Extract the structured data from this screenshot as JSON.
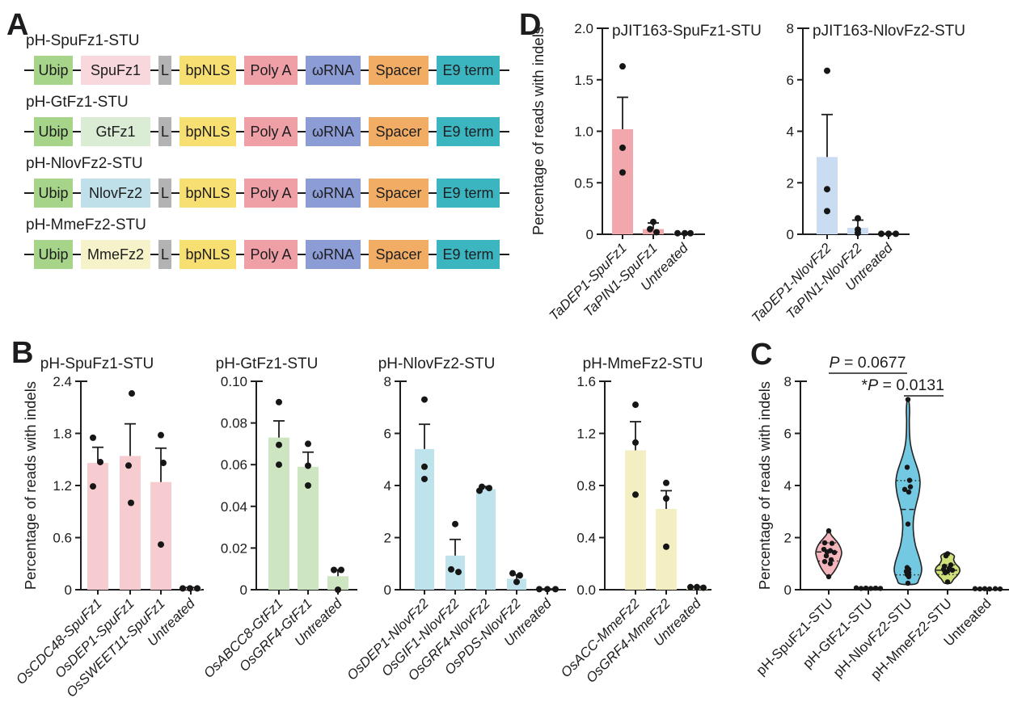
{
  "figure": {
    "panel_letters": {
      "a": "A",
      "b": "B",
      "c": "C",
      "d": "D"
    }
  },
  "panel_a": {
    "constructs": [
      {
        "title": "pH-SpuFz1-STU",
        "boxes": [
          {
            "label": "Ubip",
            "color": "#a6d488"
          },
          {
            "label": "SpuFz1",
            "color": "#f8d8dc"
          },
          {
            "label": "L",
            "color": "#b3b3b3"
          },
          {
            "label": "bpNLS",
            "color": "#f7df72"
          },
          {
            "label": "Poly A",
            "color": "#efa0a6"
          },
          {
            "label": "ωRNA",
            "color": "#8c9cd5"
          },
          {
            "label": "Spacer",
            "color": "#f2ad64"
          },
          {
            "label": "E9 term",
            "color": "#3bb5bf"
          }
        ]
      },
      {
        "title": "pH-GtFz1-STU",
        "boxes": [
          {
            "label": "Ubip",
            "color": "#a6d488"
          },
          {
            "label": "GtFz1",
            "color": "#daecd4"
          },
          {
            "label": "L",
            "color": "#b3b3b3"
          },
          {
            "label": "bpNLS",
            "color": "#f7df72"
          },
          {
            "label": "Poly A",
            "color": "#efa0a6"
          },
          {
            "label": "ωRNA",
            "color": "#8c9cd5"
          },
          {
            "label": "Spacer",
            "color": "#f2ad64"
          },
          {
            "label": "E9 term",
            "color": "#3bb5bf"
          }
        ]
      },
      {
        "title": "pH-NlovFz2-STU",
        "boxes": [
          {
            "label": "Ubip",
            "color": "#a6d488"
          },
          {
            "label": "NlovFz2",
            "color": "#bfe0e8"
          },
          {
            "label": "L",
            "color": "#b3b3b3"
          },
          {
            "label": "bpNLS",
            "color": "#f7df72"
          },
          {
            "label": "Poly A",
            "color": "#efa0a6"
          },
          {
            "label": "ωRNA",
            "color": "#8c9cd5"
          },
          {
            "label": "Spacer",
            "color": "#f2ad64"
          },
          {
            "label": "E9 term",
            "color": "#3bb5bf"
          }
        ]
      },
      {
        "title": "pH-MmeFz2-STU",
        "boxes": [
          {
            "label": "Ubip",
            "color": "#a6d488"
          },
          {
            "label": "MmeFz2",
            "color": "#f6f2ca"
          },
          {
            "label": "L",
            "color": "#b3b3b3"
          },
          {
            "label": "bpNLS",
            "color": "#f7df72"
          },
          {
            "label": "Poly A",
            "color": "#efa0a6"
          },
          {
            "label": "ωRNA",
            "color": "#8c9cd5"
          },
          {
            "label": "Spacer",
            "color": "#f2ad64"
          },
          {
            "label": "E9 term",
            "color": "#3bb5bf"
          }
        ]
      }
    ]
  },
  "chart_data": [
    {
      "id": "b1",
      "type": "bar",
      "title": "pH-SpuFz1-STU",
      "ylabel": "Percentage of reads with indels",
      "ylim": [
        0,
        2.4
      ],
      "ytick_values": [
        0,
        0.6,
        1.2,
        1.8,
        2.4
      ],
      "ytick_labels": [
        "0",
        "0.6",
        "1.2",
        "1.8",
        "2.4"
      ],
      "bar_color": "#f6ccd1",
      "x_italic": true,
      "categories": [
        "OsCDC48-SpuFz1",
        "OsDEP1-SpuFz1",
        "OsSWEET11-SpuFz1",
        "Untreated"
      ],
      "means": [
        1.46,
        1.54,
        1.24,
        0.015
      ],
      "sem_upper": [
        0.18,
        0.37,
        0.39,
        0.01
      ],
      "points": [
        [
          [
            1.75,
            -6
          ],
          [
            1.47,
            3
          ],
          [
            1.19,
            -6
          ]
        ],
        [
          [
            2.26,
            2
          ],
          [
            1.43,
            -2
          ],
          [
            1.0,
            1
          ]
        ],
        [
          [
            1.78,
            0
          ],
          [
            1.46,
            3
          ],
          [
            0.52,
            0
          ]
        ],
        [
          [
            0.015,
            -10
          ],
          [
            0.015,
            -1
          ],
          [
            0.015,
            8
          ]
        ]
      ]
    },
    {
      "id": "b2",
      "type": "bar",
      "title": "pH-GtFz1-STU",
      "ylabel": "",
      "ylim": [
        0,
        0.1
      ],
      "ytick_values": [
        0,
        0.02,
        0.04,
        0.06,
        0.08,
        0.1
      ],
      "ytick_labels": [
        "0",
        "0.02",
        "0.04",
        "0.06",
        "0.08",
        "0.10"
      ],
      "bar_color": "#cee5c2",
      "x_italic": true,
      "categories": [
        "OsABCC8-GtFz1",
        "OsGRF4-GtFz1",
        "Untreated"
      ],
      "means": [
        0.073,
        0.059,
        0.0065
      ],
      "sem_upper": [
        0.008,
        0.007,
        0.003
      ],
      "points": [
        [
          [
            0.09,
            0
          ],
          [
            0.0695,
            0
          ],
          [
            0.06,
            0
          ]
        ],
        [
          [
            0.07,
            0
          ],
          [
            0.0595,
            0
          ],
          [
            0.05,
            0
          ]
        ],
        [
          [
            0.0095,
            -5
          ],
          [
            0.0095,
            4
          ],
          [
            0.0,
            0
          ]
        ]
      ]
    },
    {
      "id": "b3",
      "type": "bar",
      "title": "pH-NlovFz2-STU",
      "ylabel": "",
      "ylim": [
        0,
        8
      ],
      "ytick_values": [
        0,
        2,
        4,
        6,
        8
      ],
      "ytick_labels": [
        "0",
        "2",
        "4",
        "6",
        "8"
      ],
      "bar_color": "#bfe3ec",
      "x_italic": true,
      "categories": [
        "OsDEP1-NlovFz2",
        "OsGIF1-NlovFz2",
        "OsGRF4-NlovFz2",
        "OsPDS-NlovFz2",
        "Untreated"
      ],
      "means": [
        5.4,
        1.31,
        3.86,
        0.42,
        0.02
      ],
      "sem_upper": [
        0.95,
        0.62,
        0.1,
        0.15,
        0.01
      ],
      "points": [
        [
          [
            7.3,
            0
          ],
          [
            4.72,
            0
          ],
          [
            4.25,
            0
          ]
        ],
        [
          [
            2.52,
            0
          ],
          [
            0.78,
            -5
          ],
          [
            0.68,
            4
          ]
        ],
        [
          [
            3.95,
            -5
          ],
          [
            3.9,
            4
          ],
          [
            3.8,
            -8
          ]
        ],
        [
          [
            0.63,
            -5
          ],
          [
            0.55,
            4
          ],
          [
            0.3,
            0
          ]
        ],
        [
          [
            0.02,
            -10
          ],
          [
            0.02,
            0
          ],
          [
            0.02,
            10
          ]
        ]
      ]
    },
    {
      "id": "b4",
      "type": "bar",
      "title": "pH-MmeFz2-STU",
      "ylabel": "",
      "ylim": [
        0,
        1.6
      ],
      "ytick_values": [
        0,
        0.4,
        0.8,
        1.2,
        1.6
      ],
      "ytick_labels": [
        "0.0",
        "0.4",
        "0.8",
        "1.2",
        "1.6"
      ],
      "bar_color": "#f3efc3",
      "x_italic": true,
      "categories": [
        "OsACC-MmeFz2",
        "OsGRF4-MmeFz2",
        "Untreated"
      ],
      "means": [
        1.07,
        0.62,
        0.015
      ],
      "sem_upper": [
        0.22,
        0.14,
        0.008
      ],
      "points": [
        [
          [
            1.42,
            0
          ],
          [
            1.13,
            0
          ],
          [
            0.73,
            0
          ]
        ],
        [
          [
            0.82,
            0
          ],
          [
            0.7,
            0
          ],
          [
            0.33,
            0
          ]
        ],
        [
          [
            0.02,
            -8
          ],
          [
            0.02,
            0
          ],
          [
            0.015,
            8
          ]
        ]
      ]
    },
    {
      "id": "d1",
      "type": "bar",
      "title": "pJIT163-SpuFz1-STU",
      "ylabel": "Percentage of reads with indels",
      "ylim": [
        0,
        2
      ],
      "ytick_values": [
        0,
        0.5,
        1,
        1.5,
        2
      ],
      "ytick_labels": [
        "0",
        "0.5",
        "1.0",
        "1.5",
        "2.0"
      ],
      "bar_color": "#f2a7ad",
      "x_italic": true,
      "categories": [
        "TaDEP1-SpuFz1",
        "TaPIN1-SpuFz1",
        "Untreated"
      ],
      "means": [
        1.02,
        0.05,
        0.005
      ],
      "sem_upper": [
        0.31,
        0.06,
        0.004
      ],
      "points": [
        [
          [
            1.63,
            0
          ],
          [
            0.84,
            0
          ],
          [
            0.6,
            0
          ]
        ],
        [
          [
            0.12,
            0
          ],
          [
            0.05,
            -4
          ],
          [
            0.02,
            4
          ]
        ],
        [
          [
            0.01,
            -8
          ],
          [
            0.01,
            1
          ],
          [
            0.01,
            8
          ]
        ]
      ]
    },
    {
      "id": "d2",
      "type": "bar",
      "title": "pJIT163-NlovFz2-STU",
      "ylabel": "",
      "ylim": [
        0,
        8
      ],
      "ytick_values": [
        0,
        2,
        4,
        6,
        8
      ],
      "ytick_labels": [
        "0",
        "2",
        "4",
        "6",
        "8"
      ],
      "bar_color": "#cadcf2",
      "x_italic": true,
      "categories": [
        "TaDEP1-NlovFz2",
        "TaPIN1-NlovFz2",
        "Untreated"
      ],
      "means": [
        3.0,
        0.25,
        0.02
      ],
      "sem_upper": [
        1.65,
        0.3,
        0.01
      ],
      "points": [
        [
          [
            6.35,
            0
          ],
          [
            1.75,
            0
          ],
          [
            0.9,
            0
          ]
        ],
        [
          [
            0.62,
            0
          ],
          [
            0.18,
            0
          ],
          [
            0.05,
            0
          ]
        ],
        [
          [
            0.02,
            -9
          ],
          [
            0.02,
            0
          ],
          [
            0.02,
            9
          ]
        ]
      ]
    },
    {
      "id": "c",
      "type": "violin",
      "title": "",
      "ylabel": "Percentage of reads with indels",
      "ylim": [
        0,
        8
      ],
      "ytick_values": [
        0,
        2,
        4,
        6,
        8
      ],
      "ytick_labels": [
        "0",
        "2",
        "4",
        "6",
        "8"
      ],
      "x_italic": false,
      "categories": [
        "pH-SpuFz1-STU",
        "pH-GtFz1-STU",
        "pH-NlovFz2-STU",
        "pH-MmeFz2-STU",
        "Untreated"
      ],
      "violins": [
        {
          "category": "pH-SpuFz1-STU",
          "color": "#f4b5bc",
          "max_halfwidth": 16,
          "shape": [
            [
              0.48,
              0.04
            ],
            [
              0.62,
              0.3
            ],
            [
              0.8,
              0.55
            ],
            [
              1.0,
              0.75
            ],
            [
              1.2,
              0.9
            ],
            [
              1.4,
              1.0
            ],
            [
              1.6,
              0.92
            ],
            [
              1.8,
              0.7
            ],
            [
              1.95,
              0.45
            ],
            [
              2.1,
              0.2
            ],
            [
              2.26,
              0.05
            ]
          ],
          "median": 1.45,
          "quartiles": [
            1.1,
            1.8
          ],
          "points": [
            [
              2.26,
              0
            ],
            [
              1.8,
              -5
            ],
            [
              1.78,
              4
            ],
            [
              1.55,
              -6
            ],
            [
              1.5,
              2
            ],
            [
              1.45,
              -2
            ],
            [
              1.43,
              7
            ],
            [
              1.3,
              -3
            ],
            [
              1.15,
              3
            ],
            [
              1.08,
              -5
            ],
            [
              1.0,
              2
            ],
            [
              0.5,
              0
            ]
          ]
        },
        {
          "category": "pH-GtFz1-STU",
          "color": null,
          "points": [
            [
              0.07,
              -15
            ],
            [
              0.05,
              -9
            ],
            [
              0.06,
              -3
            ],
            [
              0.05,
              3
            ],
            [
              0.06,
              9
            ],
            [
              0.05,
              15
            ]
          ]
        },
        {
          "category": "pH-NlovFz2-STU",
          "color": "#74c9e2",
          "max_halfwidth": 17,
          "shape": [
            [
              0.22,
              0.55
            ],
            [
              0.4,
              0.8
            ],
            [
              0.6,
              0.95
            ],
            [
              0.8,
              1.0
            ],
            [
              1.05,
              0.92
            ],
            [
              1.35,
              0.75
            ],
            [
              1.7,
              0.55
            ],
            [
              2.1,
              0.42
            ],
            [
              2.5,
              0.38
            ],
            [
              2.9,
              0.45
            ],
            [
              3.3,
              0.62
            ],
            [
              3.7,
              0.8
            ],
            [
              4.1,
              0.88
            ],
            [
              4.45,
              0.8
            ],
            [
              4.8,
              0.6
            ],
            [
              5.2,
              0.35
            ],
            [
              5.6,
              0.18
            ],
            [
              6.0,
              0.12
            ],
            [
              6.5,
              0.1
            ],
            [
              6.9,
              0.12
            ],
            [
              7.3,
              0.05
            ]
          ],
          "median": 3.08,
          "quartiles": [
            0.57,
            4.19
          ],
          "points": [
            [
              7.3,
              0
            ],
            [
              4.7,
              -1
            ],
            [
              4.2,
              2
            ],
            [
              3.95,
              3
            ],
            [
              3.85,
              -4
            ],
            [
              3.75,
              1
            ],
            [
              2.52,
              0
            ],
            [
              0.85,
              -1
            ],
            [
              0.78,
              1
            ],
            [
              0.7,
              -2
            ],
            [
              0.65,
              1
            ],
            [
              0.58,
              -1
            ],
            [
              0.5,
              1
            ],
            [
              0.25,
              0
            ]
          ]
        },
        {
          "category": "pH-MmeFz2-STU",
          "color": "#cfe178",
          "max_halfwidth": 15,
          "shape": [
            [
              0.25,
              0.25
            ],
            [
              0.4,
              0.5
            ],
            [
              0.55,
              0.8
            ],
            [
              0.7,
              1.0
            ],
            [
              0.85,
              0.95
            ],
            [
              1.0,
              0.65
            ],
            [
              1.15,
              0.5
            ],
            [
              1.3,
              0.55
            ],
            [
              1.42,
              0.15
            ]
          ],
          "median": 0.75,
          "quartiles": [
            0.58,
            0.95
          ],
          "points": [
            [
              1.38,
              0
            ],
            [
              1.3,
              -2
            ],
            [
              0.95,
              4
            ],
            [
              0.9,
              -4
            ],
            [
              0.82,
              2
            ],
            [
              0.78,
              -5
            ],
            [
              0.75,
              6
            ],
            [
              0.7,
              0
            ],
            [
              0.65,
              -3
            ],
            [
              0.3,
              0
            ]
          ]
        },
        {
          "category": "Untreated",
          "color": null,
          "points": [
            [
              0.04,
              -15
            ],
            [
              0.03,
              -9
            ],
            [
              0.04,
              -3
            ],
            [
              0.03,
              3
            ],
            [
              0.04,
              10
            ],
            [
              0.03,
              16
            ]
          ]
        }
      ],
      "annotations": [
        {
          "star": "",
          "p": "P",
          "rest": " = 0.0677"
        },
        {
          "star": "*",
          "p": "P",
          "rest": " = 0.0131"
        }
      ]
    }
  ]
}
